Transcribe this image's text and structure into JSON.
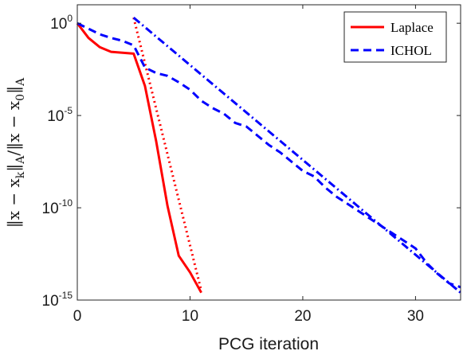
{
  "chart_data": {
    "type": "line",
    "xlabel": "PCG iteration",
    "ylabel": "‖x − xₖ‖ₐ / ‖x − x₀‖ₐ",
    "ylabel_parts": {
      "num_bar": "‖x − x",
      "num_sub": "k",
      "num_bar2": "‖",
      "num_sub2": "A",
      "slash": "/‖x − x",
      "den_sub": "0",
      "den_bar": "‖",
      "den_sub2": "A"
    },
    "yscale": "log",
    "xlim": [
      0,
      34
    ],
    "ylim_exp": [
      -15,
      1
    ],
    "x_ticks": [
      0,
      10,
      20,
      30
    ],
    "x_tick_labels": [
      "0",
      "10",
      "20",
      "30"
    ],
    "y_ticks": [
      {
        "value": 0,
        "base": "10",
        "exp": "0"
      },
      {
        "value": -5,
        "base": "10",
        "exp": "-5"
      },
      {
        "value": -10,
        "base": "10",
        "exp": "-10"
      },
      {
        "value": -15,
        "base": "10",
        "exp": "-15"
      }
    ],
    "legend_position": "top-right",
    "series": [
      {
        "name": "Laplace",
        "color": "#ff0000",
        "style": "solid",
        "x": [
          0,
          1,
          2,
          3,
          4,
          5,
          6,
          7,
          8,
          9,
          10,
          11
        ],
        "log10_y": [
          0,
          -0.8,
          -1.3,
          -1.55,
          -1.6,
          -1.65,
          -3.4,
          -6.4,
          -9.9,
          -12.6,
          -13.5,
          -14.6
        ]
      },
      {
        "name": "ICHOL",
        "color": "#0000ff",
        "style": "dashed",
        "x": [
          0,
          1,
          2,
          3,
          4,
          5,
          6,
          7,
          8,
          9,
          10,
          11,
          12,
          13,
          14,
          15,
          16,
          17,
          18,
          19,
          20,
          21,
          22,
          23,
          24,
          25,
          26,
          27,
          28,
          29,
          30,
          31,
          32,
          33,
          34
        ],
        "log10_y": [
          0,
          -0.3,
          -0.6,
          -0.8,
          -0.95,
          -1.2,
          -2.4,
          -2.7,
          -2.85,
          -3.2,
          -3.6,
          -4.2,
          -4.6,
          -4.9,
          -5.4,
          -5.6,
          -6.1,
          -6.6,
          -7.0,
          -7.5,
          -8.0,
          -8.3,
          -8.9,
          -9.4,
          -9.8,
          -10.2,
          -10.6,
          -11.0,
          -11.4,
          -11.8,
          -12.2,
          -13.0,
          -13.6,
          -14.1,
          -14.3
        ]
      }
    ],
    "reference_lines": [
      {
        "color": "#ff0000",
        "style": "dotted",
        "x": [
          5,
          11
        ],
        "log10_y": [
          0.3,
          -14.5
        ]
      },
      {
        "color": "#0000ff",
        "style": "dashdot",
        "x": [
          5,
          34
        ],
        "log10_y": [
          0.3,
          -14.6
        ]
      }
    ]
  }
}
